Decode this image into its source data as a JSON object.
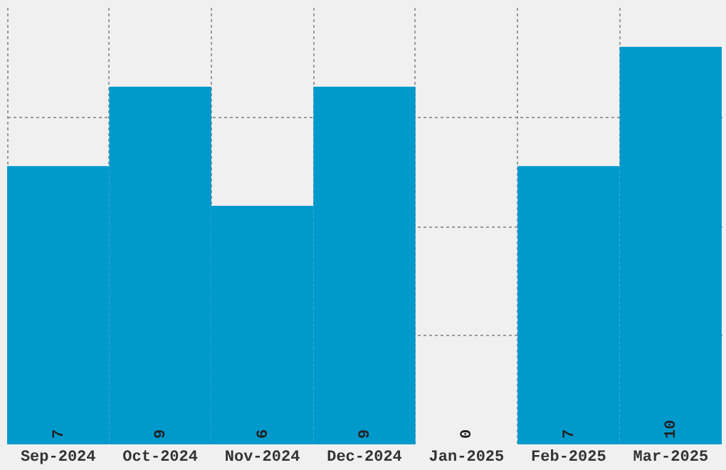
{
  "chart_data": {
    "type": "bar",
    "categories": [
      "Sep-2024",
      "Oct-2024",
      "Nov-2024",
      "Dec-2024",
      "Jan-2025",
      "Feb-2025",
      "Mar-2025"
    ],
    "values": [
      7,
      9,
      6,
      9,
      0,
      7,
      10
    ],
    "color": "#0099cc",
    "ylim": [
      0,
      11
    ],
    "yticks": [
      {
        "value": 2.75,
        "label": null
      },
      {
        "value": 5.5,
        "label": null
      },
      {
        "value": 8.25,
        "label": null
      }
    ],
    "grid": true,
    "data_labels": true,
    "tick_labels": "x"
  }
}
